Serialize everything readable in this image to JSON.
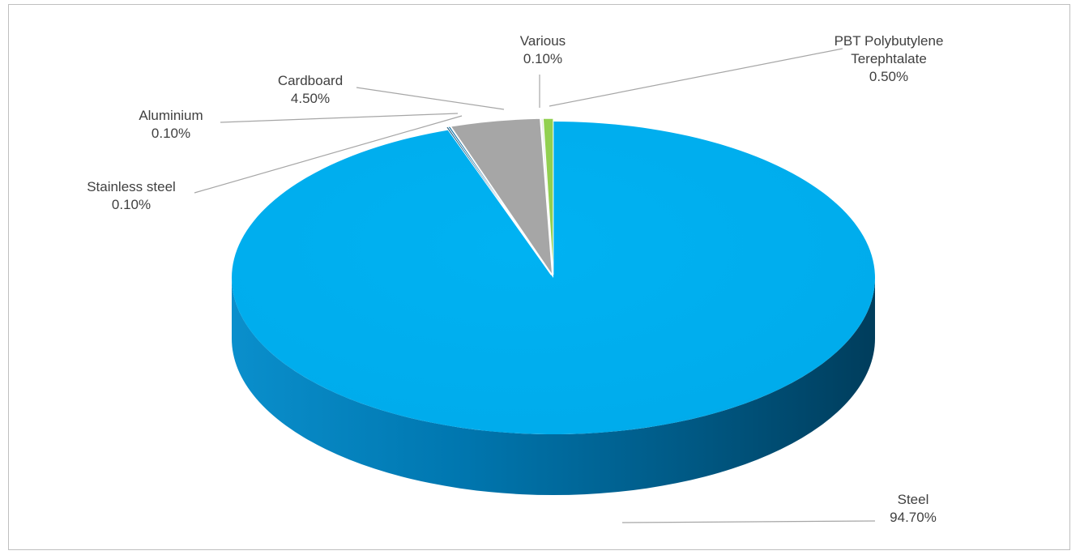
{
  "chart_data": {
    "type": "pie",
    "style": "3d-pie",
    "categories": [
      "Steel",
      "Cardboard",
      "Aluminium",
      "Stainless steel",
      "Various",
      "PBT Polybutylene Terephtalate"
    ],
    "values": [
      94.7,
      4.5,
      0.1,
      0.1,
      0.1,
      0.5
    ],
    "labels": [
      {
        "name": "Steel",
        "value": "94.70%"
      },
      {
        "name": "Cardboard",
        "value": "4.50%"
      },
      {
        "name": "Aluminium",
        "value": "0.10%"
      },
      {
        "name": "Stainless steel",
        "value": "0.10%"
      },
      {
        "name": "Various",
        "value": "0.10%"
      },
      {
        "name": "PBT Polybutylene\nTerephtalate",
        "value": "0.50%"
      }
    ],
    "colors": {
      "Steel": "#00aeef",
      "Cardboard": "#a6a6a6",
      "Aluminium": "#0b6fa4",
      "Stainless steel": "#084f78",
      "Various": "#e8e8e8",
      "PBT Polybutylene Terephtalate": "#92d050"
    },
    "legend": "none"
  }
}
